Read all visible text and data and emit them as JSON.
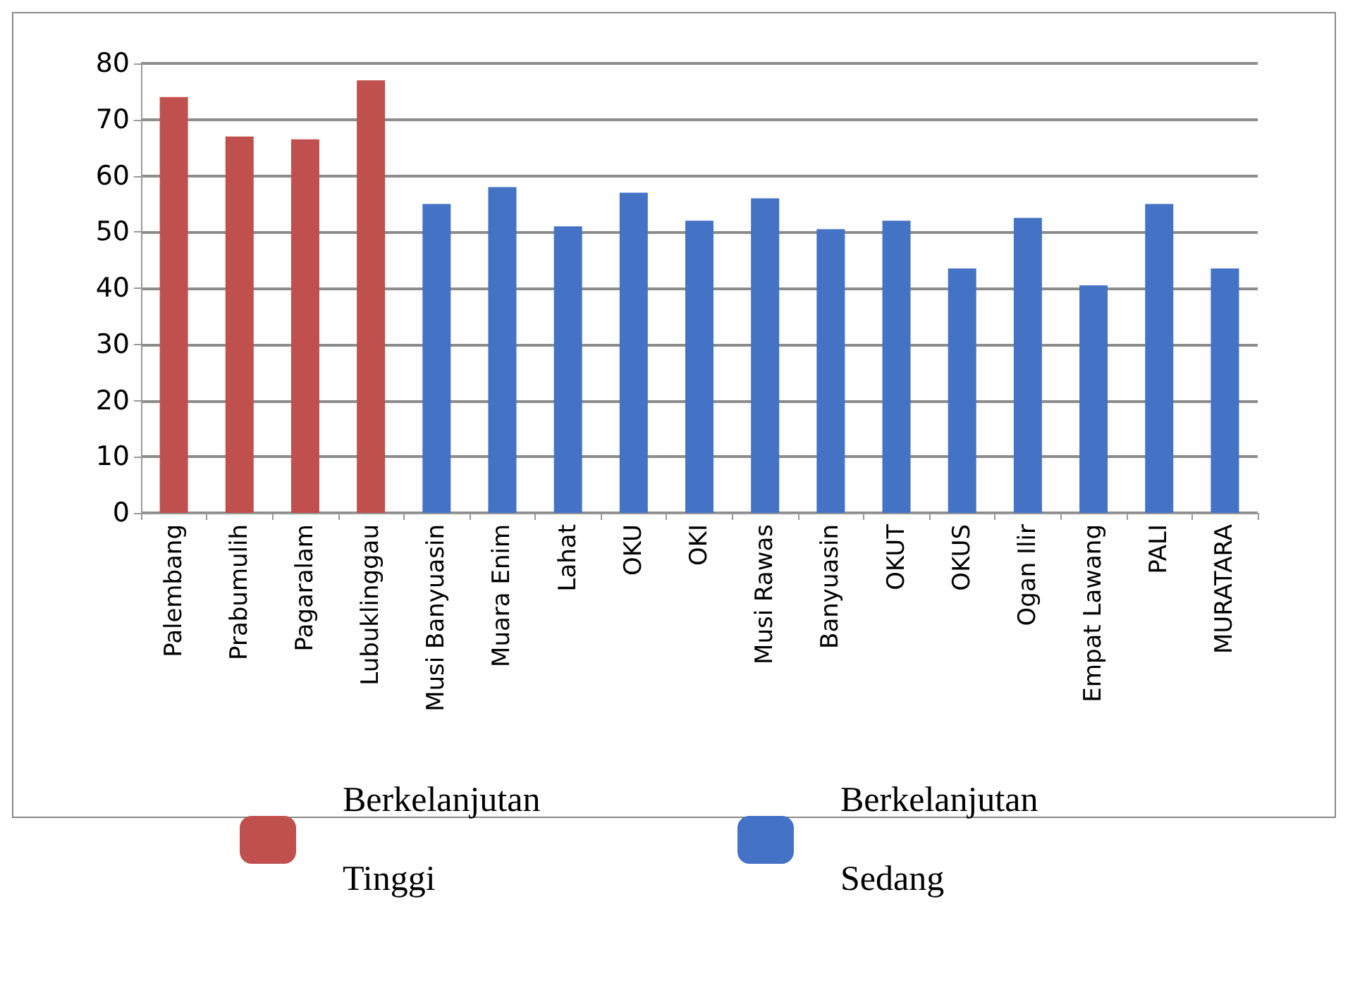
{
  "chart_data": {
    "type": "bar",
    "categories": [
      "Palembang",
      "Prabumulih",
      "Pagaralam",
      "Lubuklinggau",
      "Musi Banyuasin",
      "Muara Enim",
      "Lahat",
      "OKU",
      "OKI",
      "Musi Rawas",
      "Banyuasin",
      "OKUT",
      "OKUS",
      "Ogan Ilir",
      "Empat Lawang",
      "PALI",
      "MURATARA"
    ],
    "series": [
      {
        "name": "Berkelanjutan Tinggi",
        "color": "#c0504d",
        "values": [
          74,
          67,
          66.5,
          77,
          null,
          null,
          null,
          null,
          null,
          null,
          null,
          null,
          null,
          null,
          null,
          null,
          null
        ]
      },
      {
        "name": "Berkelanjutan Sedang",
        "color": "#4472c4",
        "values": [
          null,
          null,
          null,
          null,
          55,
          58,
          51,
          57,
          52,
          56,
          50.5,
          52,
          43.5,
          52.5,
          40.5,
          55,
          43.5
        ]
      }
    ],
    "ylim": [
      0,
      80
    ],
    "yticks": [
      0,
      10,
      20,
      30,
      40,
      50,
      60,
      70,
      80
    ],
    "grid": "y",
    "legend": "bottom"
  }
}
